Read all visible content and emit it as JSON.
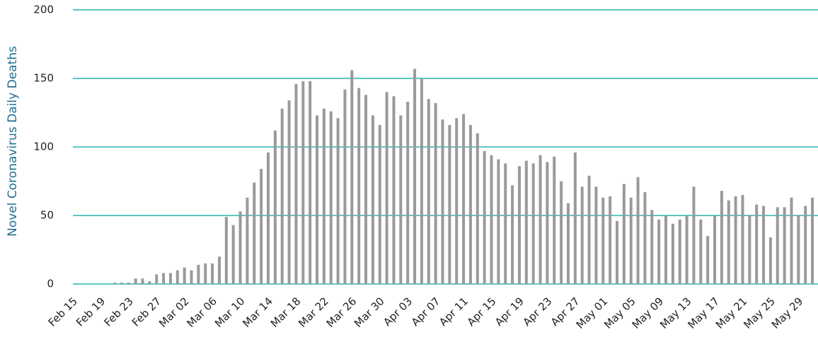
{
  "chart_data": {
    "type": "bar",
    "y_label": "Novel Coronavirus Daily Deaths",
    "categories": [
      "Feb 15",
      null,
      null,
      null,
      "Feb 19",
      null,
      null,
      null,
      "Feb 23",
      null,
      null,
      null,
      "Feb 27",
      null,
      null,
      null,
      "Mar 02",
      null,
      null,
      null,
      "Mar 06",
      null,
      null,
      null,
      "Mar 10",
      null,
      null,
      null,
      "Mar 14",
      null,
      null,
      null,
      "Mar 18",
      null,
      null,
      null,
      "Mar 22",
      null,
      null,
      null,
      "Mar 26",
      null,
      null,
      null,
      "Mar 30",
      null,
      null,
      null,
      "Apr 03",
      null,
      null,
      null,
      "Apr 07",
      null,
      null,
      null,
      "Apr 11",
      null,
      null,
      null,
      "Apr 15",
      null,
      null,
      null,
      "Apr 19",
      null,
      null,
      null,
      "Apr 23",
      null,
      null,
      null,
      "Apr 27",
      null,
      null,
      null,
      "May 01",
      null,
      null,
      null,
      "May 05",
      null,
      null,
      null,
      "May 09",
      null,
      null,
      null,
      "May 13",
      null,
      null,
      null,
      "May 17",
      null,
      null,
      null,
      "May 21",
      null,
      null,
      null,
      "May 25",
      null,
      null,
      null,
      "May 29",
      null,
      null
    ],
    "values": [
      0,
      0,
      0,
      0,
      0,
      0,
      1,
      1,
      1,
      4,
      4,
      2,
      7,
      8,
      8,
      10,
      12,
      10,
      14,
      15,
      15,
      20,
      49,
      43,
      53,
      63,
      74,
      84,
      96,
      112,
      128,
      134,
      146,
      148,
      148,
      123,
      128,
      126,
      121,
      142,
      156,
      143,
      138,
      123,
      116,
      140,
      137,
      123,
      133,
      157,
      150,
      135,
      132,
      120,
      116,
      121,
      124,
      116,
      110,
      97,
      94,
      91,
      88,
      72,
      86,
      90,
      88,
      94,
      89,
      93,
      75,
      59,
      96,
      71,
      79,
      71,
      63,
      64,
      46,
      73,
      63,
      78,
      67,
      54,
      47,
      50,
      44,
      47,
      50,
      71,
      47,
      35,
      50,
      68,
      61,
      64,
      65,
      50,
      58,
      57,
      34,
      56,
      56,
      63,
      50,
      57,
      63
    ],
    "color": "#9a9a9a",
    "grid_color": "#2ab3ae",
    "ylim": [
      0,
      200
    ],
    "yticks": [
      0,
      50,
      100,
      150,
      200
    ],
    "grid": true
  }
}
